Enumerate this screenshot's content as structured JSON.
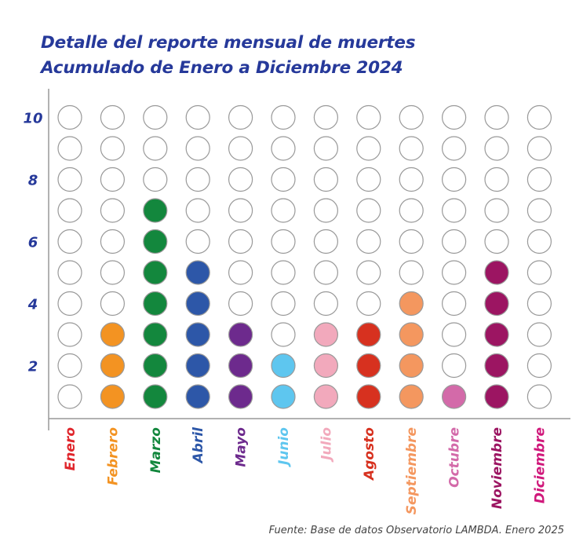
{
  "chart_data": {
    "type": "dot-matrix",
    "title": "Detalle del reporte mensual de muertes",
    "subtitle": "Acumulado de Enero a Diciembre 2024",
    "categories": [
      "Enero",
      "Febrero",
      "Marzo",
      "Abril",
      "Mayo",
      "Junio",
      "Julio",
      "Agosto",
      "Septiembre",
      "Octubre",
      "Noviembre",
      "Diciembre"
    ],
    "values": [
      0,
      3,
      7,
      5,
      3,
      2,
      3,
      3,
      4,
      1,
      5,
      0
    ],
    "colors": [
      "#e0262c",
      "#f39322",
      "#13873d",
      "#2d57a8",
      "#6d2a8d",
      "#5ec6ef",
      "#f2a9bc",
      "#d7311f",
      "#f4975f",
      "#d36aa9",
      "#9c1562",
      "#d0187b"
    ],
    "ylim": [
      1,
      10
    ],
    "yticks": [
      2,
      4,
      6,
      8,
      10
    ],
    "source": "Fuente: Base de datos Observatorio LAMBDA. Enero 2025"
  }
}
